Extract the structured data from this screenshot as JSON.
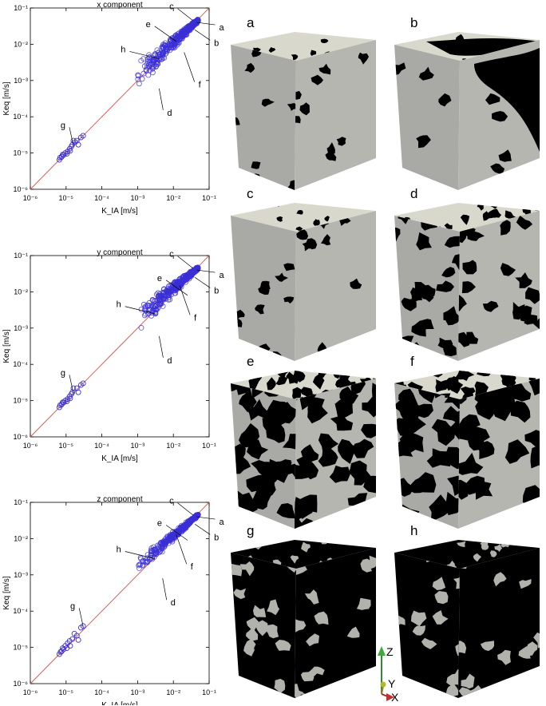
{
  "chart_data": [
    {
      "type": "scatter",
      "title": "x component",
      "xlabel": "K_IA [m/s]",
      "ylabel": "Keq [m/s]",
      "xscale": "log",
      "yscale": "log",
      "xlim": [
        1e-06,
        0.1
      ],
      "ylim": [
        1e-06,
        0.1
      ],
      "xticks": [
        "10⁻⁶",
        "10⁻⁵",
        "10⁻⁴",
        "10⁻³",
        "10⁻²",
        "10⁻¹"
      ],
      "yticks": [
        "10⁻⁶",
        "10⁻⁵",
        "10⁻⁴",
        "10⁻³",
        "10⁻²",
        "10⁻¹"
      ],
      "line": {
        "x": [
          1e-06,
          0.1
        ],
        "y": [
          1e-06,
          0.1
        ],
        "color": "#d9534f"
      },
      "marker_color": "#3b2fd6",
      "points": [
        [
          6.5e-06,
          6.5e-06
        ],
        [
          7.5e-06,
          7.8e-06
        ],
        [
          8.5e-06,
          8.8e-06
        ],
        [
          9.5e-06,
          1e-05
        ],
        [
          1.1e-05,
          1.1e-05
        ],
        [
          1.25e-05,
          1.3e-05
        ],
        [
          1.5e-05,
          1.7e-05
        ],
        [
          2e-05,
          2.2e-05
        ],
        [
          2.6e-05,
          2.7e-05
        ],
        [
          3e-05,
          3e-05
        ],
        [
          8e-06,
          9e-06
        ],
        [
          1.3e-05,
          1.15e-05
        ],
        [
          2.2e-05,
          1.7e-05
        ],
        [
          1.6e-05,
          2.2e-05
        ],
        [
          6.8e-06,
          7.5e-06
        ],
        [
          1.05e-05,
          9.5e-06
        ],
        [
          1.4e-05,
          1.5e-05
        ],
        [
          1.8e-05,
          2e-05
        ]
      ],
      "cloud": {
        "x": [
          0.001,
          0.05
        ],
        "ymin": [
          0.0004,
          0.04
        ],
        "ymax": [
          0.003,
          0.05
        ],
        "count": 360,
        "spread": 0.55
      },
      "annotations": [
        {
          "label": "a",
          "x": 0.045,
          "y": 0.04
        },
        {
          "label": "b",
          "x": 0.04,
          "y": 0.025
        },
        {
          "label": "c",
          "x": 0.035,
          "y": 0.045
        },
        {
          "label": "d",
          "x": 0.004,
          "y": 0.0006
        },
        {
          "label": "e",
          "x": 0.012,
          "y": 0.012
        },
        {
          "label": "f",
          "x": 0.02,
          "y": 0.006
        },
        {
          "label": "g",
          "x": 1.6e-05,
          "y": 1.6e-05
        },
        {
          "label": "h",
          "x": 0.004,
          "y": 0.004
        }
      ]
    },
    {
      "type": "scatter",
      "title": "y component",
      "xlabel": "K_IA [m/s]",
      "ylabel": "Keq [m/s]",
      "xscale": "log",
      "yscale": "log",
      "xlim": [
        1e-06,
        0.1
      ],
      "ylim": [
        1e-06,
        0.1
      ],
      "xticks": [
        "10⁻⁶",
        "10⁻⁵",
        "10⁻⁴",
        "10⁻³",
        "10⁻²",
        "10⁻¹"
      ],
      "yticks": [
        "10⁻⁶",
        "10⁻⁵",
        "10⁻⁴",
        "10⁻³",
        "10⁻²",
        "10⁻¹"
      ],
      "line": {
        "x": [
          1e-06,
          0.1
        ],
        "y": [
          1e-06,
          0.1
        ],
        "color": "#d9534f"
      },
      "marker_color": "#3b2fd6",
      "points": [
        [
          6.5e-06,
          6.5e-06
        ],
        [
          7.5e-06,
          7.8e-06
        ],
        [
          8.5e-06,
          8.8e-06
        ],
        [
          9.5e-06,
          1e-05
        ],
        [
          1.1e-05,
          1.1e-05
        ],
        [
          1.25e-05,
          1.3e-05
        ],
        [
          1.5e-05,
          1.7e-05
        ],
        [
          2e-05,
          2.2e-05
        ],
        [
          2.6e-05,
          2.7e-05
        ],
        [
          3e-05,
          3e-05
        ],
        [
          8e-06,
          9e-06
        ],
        [
          1.3e-05,
          1.15e-05
        ],
        [
          2.2e-05,
          1.7e-05
        ],
        [
          1.6e-05,
          2.2e-05
        ],
        [
          6.8e-06,
          7.5e-06
        ],
        [
          1.05e-05,
          9.5e-06
        ],
        [
          1.4e-05,
          1.5e-05
        ]
      ],
      "cloud": {
        "x": [
          0.001,
          0.05
        ],
        "ymin": [
          0.0004,
          0.04
        ],
        "ymax": [
          0.004,
          0.05
        ],
        "count": 360,
        "spread": 0.55
      },
      "annotations": [
        {
          "label": "a",
          "x": 0.045,
          "y": 0.04
        },
        {
          "label": "b",
          "x": 0.04,
          "y": 0.025
        },
        {
          "label": "c",
          "x": 0.035,
          "y": 0.045
        },
        {
          "label": "d",
          "x": 0.004,
          "y": 0.0006
        },
        {
          "label": "e",
          "x": 0.025,
          "y": 0.008
        },
        {
          "label": "f",
          "x": 0.015,
          "y": 0.015
        },
        {
          "label": "g",
          "x": 1.6e-05,
          "y": 1.6e-05
        },
        {
          "label": "h",
          "x": 0.003,
          "y": 0.0025
        }
      ]
    },
    {
      "type": "scatter",
      "title": "z component",
      "xlabel": "K_IA [m/s]",
      "ylabel": "Keq [m/s]",
      "xscale": "log",
      "yscale": "log",
      "xlim": [
        1e-06,
        0.1
      ],
      "ylim": [
        1e-06,
        0.1
      ],
      "xticks": [
        "10⁻⁶",
        "10⁻⁵",
        "10⁻⁴",
        "10⁻³",
        "10⁻²",
        "10⁻¹"
      ],
      "yticks": [
        "10⁻⁶",
        "10⁻⁵",
        "10⁻⁴",
        "10⁻³",
        "10⁻²",
        "10⁻¹"
      ],
      "line": {
        "x": [
          1e-06,
          0.1
        ],
        "y": [
          1e-06,
          0.1
        ],
        "color": "#d9534f"
      },
      "marker_color": "#3b2fd6",
      "points": [
        [
          6.5e-06,
          6.5e-06
        ],
        [
          7.5e-06,
          7.8e-06
        ],
        [
          8.5e-06,
          8.8e-06
        ],
        [
          9.5e-06,
          1.1e-05
        ],
        [
          1.1e-05,
          1.3e-05
        ],
        [
          1.25e-05,
          1.5e-05
        ],
        [
          1.5e-05,
          1.7e-05
        ],
        [
          2e-05,
          2.1e-05
        ],
        [
          2.6e-05,
          3.5e-05
        ],
        [
          3e-05,
          3.9e-05
        ],
        [
          8e-06,
          9.5e-06
        ],
        [
          1.3e-05,
          1.1e-05
        ],
        [
          2.2e-05,
          1.6e-05
        ],
        [
          7e-06,
          7.5e-06
        ],
        [
          1.05e-05,
          9.5e-06
        ],
        [
          1.7e-05,
          2.4e-05
        ]
      ],
      "cloud": {
        "x": [
          0.001,
          0.05
        ],
        "ymin": [
          0.0006,
          0.04
        ],
        "ymax": [
          0.003,
          0.05
        ],
        "count": 320,
        "spread": 0.45
      },
      "annotations": [
        {
          "label": "a",
          "x": 0.045,
          "y": 0.04
        },
        {
          "label": "b",
          "x": 0.04,
          "y": 0.025
        },
        {
          "label": "c",
          "x": 0.035,
          "y": 0.045
        },
        {
          "label": "d",
          "x": 0.005,
          "y": 0.0008
        },
        {
          "label": "e",
          "x": 0.025,
          "y": 0.009
        },
        {
          "label": "f",
          "x": 0.012,
          "y": 0.013
        },
        {
          "label": "g",
          "x": 3e-05,
          "y": 3.8e-05
        },
        {
          "label": "h",
          "x": 0.003,
          "y": 0.0028
        }
      ]
    }
  ],
  "cubes": [
    {
      "label": "a",
      "top": "#d9d8cc",
      "side": "#b6b6b1",
      "front": "#a9a9a6",
      "pore": "#000000",
      "pores": "sparse"
    },
    {
      "label": "b",
      "top": "#d9d8cc",
      "side": "#b6b6b1",
      "front": "#a9a9a6",
      "pore": "#000000",
      "pores": "channel"
    },
    {
      "label": "c",
      "top": "#d9d8cc",
      "side": "#b6b6b1",
      "front": "#a9a9a6",
      "pore": "#000000",
      "pores": "sparse"
    },
    {
      "label": "d",
      "top": "#d9d8cc",
      "side": "#b6b6b1",
      "front": "#a9a9a6",
      "pore": "#000000",
      "pores": "medium"
    },
    {
      "label": "e",
      "top": "#d9d8cc",
      "side": "#b6b6b1",
      "front": "#a9a9a6",
      "pore": "#000000",
      "pores": "dense"
    },
    {
      "label": "f",
      "top": "#d9d8cc",
      "side": "#b6b6b1",
      "front": "#a9a9a6",
      "pore": "#000000",
      "pores": "grains"
    },
    {
      "label": "g",
      "top": "#000000",
      "side": "#000000",
      "front": "#000000",
      "pore": "#b2b2ad",
      "pores": "inverse"
    },
    {
      "label": "h",
      "top": "#000000",
      "side": "#000000",
      "front": "#000000",
      "pore": "#b2b2ad",
      "pores": "inverse"
    }
  ],
  "axes_triad": {
    "z": "Z",
    "y": "Y",
    "x": "X"
  }
}
